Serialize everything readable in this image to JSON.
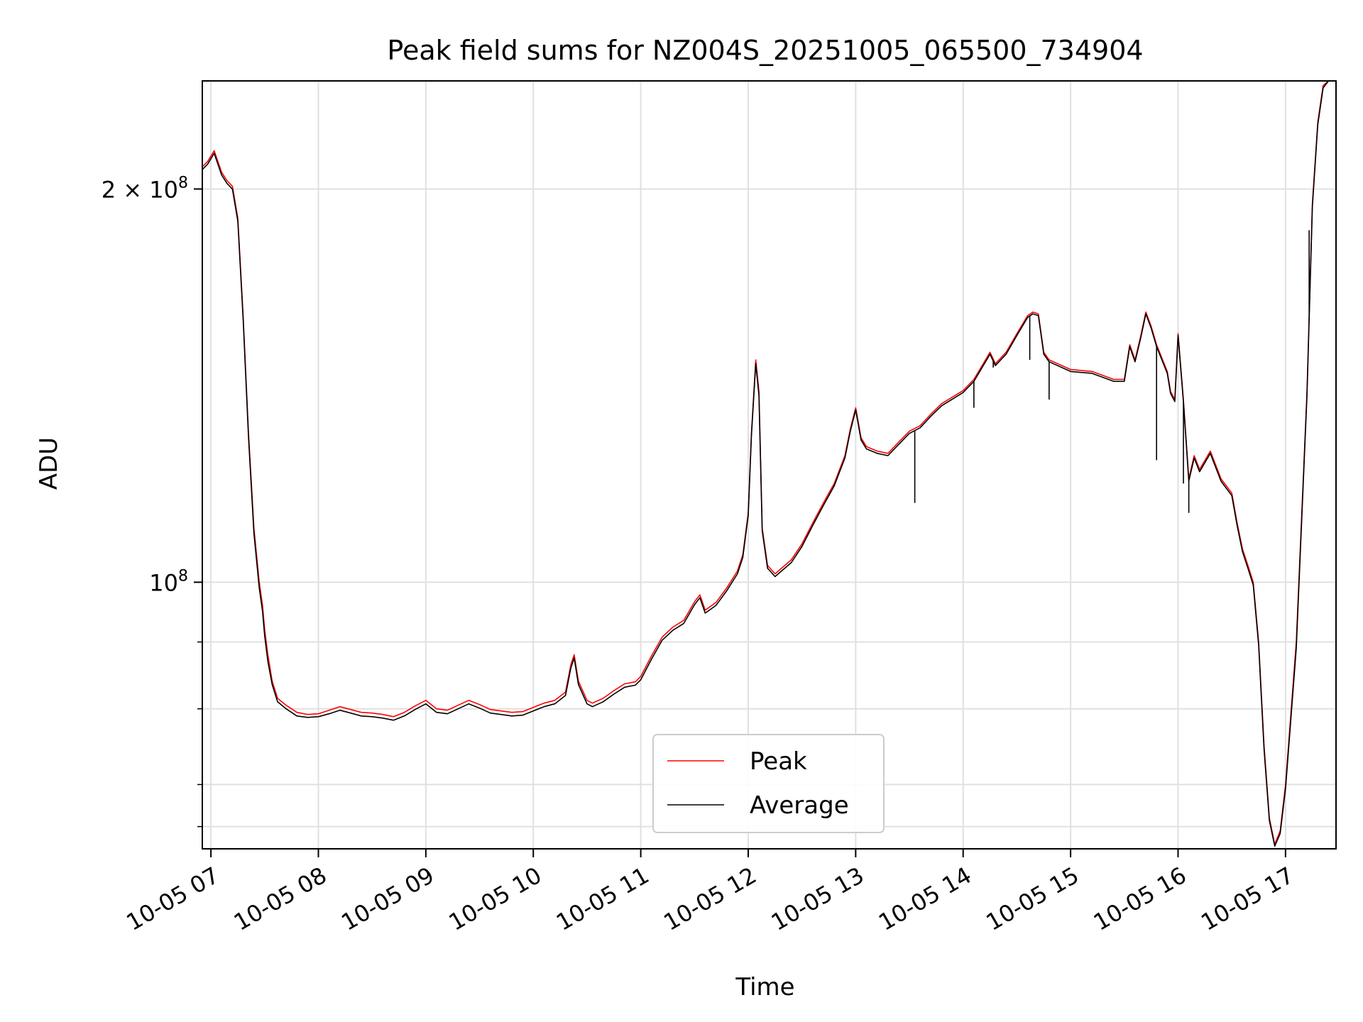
{
  "chart_data": {
    "type": "line",
    "title": "Peak field sums for NZ004S_20251005_065500_734904",
    "xlabel": "Time",
    "ylabel": "ADU",
    "yscale": "log",
    "ylim": [
      62500000,
      242000000
    ],
    "xlim": [
      6.92,
      17.47
    ],
    "grid": true,
    "legend_position": "lower-center",
    "x_ticks": [
      {
        "value": 7,
        "label": "10-05 07"
      },
      {
        "value": 8,
        "label": "10-05 08"
      },
      {
        "value": 9,
        "label": "10-05 09"
      },
      {
        "value": 10,
        "label": "10-05 10"
      },
      {
        "value": 11,
        "label": "10-05 11"
      },
      {
        "value": 12,
        "label": "10-05 12"
      },
      {
        "value": 13,
        "label": "10-05 13"
      },
      {
        "value": 14,
        "label": "10-05 14"
      },
      {
        "value": 15,
        "label": "10-05 15"
      },
      {
        "value": 16,
        "label": "10-05 16"
      },
      {
        "value": 17,
        "label": "10-05 17"
      }
    ],
    "y_ticks_major": [
      {
        "value": 100000000,
        "label_base": "10",
        "label_exp": "8"
      },
      {
        "value": 200000000,
        "label_base": "2 × 10",
        "label_exp": "8"
      }
    ],
    "y_ticks_minor": [
      65000000,
      70000000,
      80000000,
      90000000,
      300000000
    ],
    "series": [
      {
        "name": "Peak",
        "color": "#ff0000",
        "x": [
          6.92,
          6.97,
          7.03,
          7.1,
          7.15,
          7.2,
          7.25,
          7.3,
          7.35,
          7.4,
          7.45,
          7.48,
          7.5,
          7.53,
          7.57,
          7.62,
          7.7,
          7.8,
          7.9,
          8.0,
          8.1,
          8.2,
          8.3,
          8.4,
          8.5,
          8.6,
          8.7,
          8.75,
          8.8,
          8.9,
          9.0,
          9.1,
          9.2,
          9.3,
          9.4,
          9.5,
          9.6,
          9.7,
          9.8,
          9.9,
          10.0,
          10.1,
          10.2,
          10.3,
          10.35,
          10.38,
          10.42,
          10.5,
          10.55,
          10.65,
          10.75,
          10.85,
          10.95,
          11.0,
          11.1,
          11.2,
          11.3,
          11.4,
          11.5,
          11.55,
          11.6,
          11.7,
          11.8,
          11.9,
          11.95,
          12.0,
          12.03,
          12.07,
          12.1,
          12.13,
          12.18,
          12.25,
          12.4,
          12.5,
          12.6,
          12.7,
          12.8,
          12.9,
          12.95,
          13.0,
          13.05,
          13.1,
          13.2,
          13.3,
          13.4,
          13.5,
          13.6,
          13.7,
          13.8,
          14.0,
          14.1,
          14.2,
          14.25,
          14.3,
          14.4,
          14.5,
          14.6,
          14.65,
          14.7,
          14.75,
          14.8,
          15.0,
          15.2,
          15.4,
          15.5,
          15.55,
          15.6,
          15.65,
          15.7,
          15.75,
          15.8,
          15.9,
          15.93,
          15.97,
          16.0,
          16.05,
          16.1,
          16.15,
          16.2,
          16.3,
          16.4,
          16.5,
          16.55,
          16.6,
          16.65,
          16.7,
          16.75,
          16.8,
          16.85,
          16.9,
          16.95,
          17.0,
          17.1,
          17.2,
          17.25,
          17.3,
          17.35,
          17.4,
          17.45
        ],
        "y": [
          208000000,
          210000000,
          214000000,
          206000000,
          203000000,
          201000000,
          190000000,
          160000000,
          130000000,
          110000000,
          100000000,
          96000000,
          92000000,
          88000000,
          84000000,
          81500000,
          80500000,
          79500000,
          79200000,
          79300000,
          79800000,
          80300000,
          79900000,
          79500000,
          79400000,
          79200000,
          78900000,
          79200000,
          79500000,
          80400000,
          81200000,
          80000000,
          79800000,
          80500000,
          81200000,
          80600000,
          79900000,
          79700000,
          79500000,
          79600000,
          80200000,
          80800000,
          81200000,
          82400000,
          86500000,
          88000000,
          84000000,
          81200000,
          80800000,
          81500000,
          82600000,
          83600000,
          83900000,
          84700000,
          87800000,
          90800000,
          92400000,
          93500000,
          96600000,
          97800000,
          95200000,
          96500000,
          99000000,
          102000000,
          105000000,
          113000000,
          130000000,
          148000000,
          140000000,
          110000000,
          103000000,
          101500000,
          104000000,
          107000000,
          111000000,
          115000000,
          119000000,
          125000000,
          131000000,
          136000000,
          129000000,
          127000000,
          126000000,
          125500000,
          128000000,
          130500000,
          131800000,
          134500000,
          137000000,
          140200000,
          143000000,
          147600000,
          150000000,
          147000000,
          150000000,
          155000000,
          160000000,
          161000000,
          160500000,
          150000000,
          148000000,
          145500000,
          145000000,
          143000000,
          143000000,
          152000000,
          148000000,
          154000000,
          161000000,
          157000000,
          152000000,
          145000000,
          140000000,
          138000000,
          155000000,
          138000000,
          120000000,
          125000000,
          122000000,
          126000000,
          120000000,
          117000000,
          111000000,
          106000000,
          103000000,
          100000000,
          90000000,
          75000000,
          66000000,
          63000000,
          64500000,
          70000000,
          90000000,
          140000000,
          195000000,
          225000000,
          240000000,
          242000000,
          242000000
        ]
      },
      {
        "name": "Average",
        "color": "#000000",
        "x": [
          6.92,
          6.97,
          7.03,
          7.1,
          7.15,
          7.2,
          7.25,
          7.3,
          7.35,
          7.4,
          7.45,
          7.48,
          7.5,
          7.53,
          7.57,
          7.62,
          7.7,
          7.8,
          7.9,
          8.0,
          8.1,
          8.2,
          8.3,
          8.4,
          8.5,
          8.6,
          8.7,
          8.75,
          8.8,
          8.9,
          9.0,
          9.1,
          9.2,
          9.3,
          9.4,
          9.5,
          9.6,
          9.7,
          9.8,
          9.9,
          10.0,
          10.1,
          10.2,
          10.3,
          10.35,
          10.38,
          10.42,
          10.5,
          10.55,
          10.65,
          10.75,
          10.85,
          10.95,
          11.0,
          11.1,
          11.2,
          11.3,
          11.4,
          11.5,
          11.55,
          11.6,
          11.7,
          11.8,
          11.9,
          11.95,
          12.0,
          12.03,
          12.07,
          12.1,
          12.13,
          12.18,
          12.25,
          12.4,
          12.5,
          12.6,
          12.7,
          12.8,
          12.9,
          12.95,
          13.0,
          13.05,
          13.1,
          13.2,
          13.3,
          13.4,
          13.5,
          13.6,
          13.7,
          13.8,
          14.0,
          14.1,
          14.2,
          14.25,
          14.3,
          14.4,
          14.5,
          14.6,
          14.65,
          14.7,
          14.75,
          14.8,
          15.0,
          15.2,
          15.4,
          15.5,
          15.55,
          15.6,
          15.65,
          15.7,
          15.75,
          15.8,
          15.9,
          15.93,
          15.97,
          16.0,
          16.05,
          16.1,
          16.15,
          16.2,
          16.3,
          16.4,
          16.5,
          16.55,
          16.6,
          16.65,
          16.7,
          16.75,
          16.8,
          16.85,
          16.9,
          16.95,
          17.0,
          17.1,
          17.2,
          17.25,
          17.3,
          17.35,
          17.4,
          17.45
        ],
        "y": [
          207000000,
          209000000,
          213000000,
          205000000,
          202000000,
          200000000,
          189000000,
          159000000,
          129000000,
          109000000,
          99000000,
          95000000,
          91000000,
          87000000,
          83500000,
          81000000,
          80000000,
          79000000,
          78800000,
          78900000,
          79300000,
          79800000,
          79400000,
          79000000,
          78900000,
          78700000,
          78400000,
          78700000,
          79000000,
          79900000,
          80700000,
          79500000,
          79300000,
          80000000,
          80700000,
          80100000,
          79400000,
          79200000,
          79000000,
          79100000,
          79700000,
          80300000,
          80700000,
          81900000,
          86000000,
          87500000,
          83500000,
          80700000,
          80300000,
          81000000,
          82100000,
          83100000,
          83400000,
          84200000,
          87300000,
          90300000,
          91900000,
          93000000,
          96100000,
          97300000,
          94700000,
          96000000,
          98500000,
          101500000,
          104500000,
          112500000,
          129500000,
          147000000,
          139000000,
          109500000,
          102500000,
          101000000,
          103500000,
          106500000,
          110500000,
          114500000,
          118500000,
          124500000,
          130500000,
          135500000,
          128500000,
          126500000,
          125500000,
          125000000,
          127500000,
          130000000,
          131300000,
          134000000,
          136500000,
          139700000,
          142500000,
          147100000,
          149500000,
          146500000,
          149500000,
          154500000,
          159500000,
          160500000,
          160000000,
          149500000,
          147500000,
          145000000,
          144500000,
          142500000,
          142500000,
          151500000,
          147500000,
          153500000,
          160500000,
          156500000,
          151500000,
          144500000,
          139500000,
          137500000,
          154500000,
          137500000,
          119500000,
          124500000,
          121500000,
          125500000,
          119500000,
          116500000,
          110500000,
          105500000,
          102500000,
          99500000,
          89500000,
          74500000,
          65700000,
          62800000,
          64200000,
          69500000,
          89000000,
          139000000,
          194000000,
          224000000,
          239000000,
          242000000,
          242000000
        ]
      }
    ],
    "dropouts": [
      {
        "series": "Average",
        "x": 13.55,
        "y": 115000000
      },
      {
        "series": "Average",
        "x": 14.1,
        "y": 136000000
      },
      {
        "series": "Average",
        "x": 14.28,
        "y": 146000000
      },
      {
        "series": "Average",
        "x": 14.62,
        "y": 148000000
      },
      {
        "series": "Average",
        "x": 14.8,
        "y": 138000000
      },
      {
        "series": "Average",
        "x": 15.8,
        "y": 124000000
      },
      {
        "series": "Average",
        "x": 16.05,
        "y": 119000000
      },
      {
        "series": "Average",
        "x": 16.1,
        "y": 113000000
      },
      {
        "series": "Average",
        "x": 17.22,
        "y": 186000000
      }
    ]
  }
}
